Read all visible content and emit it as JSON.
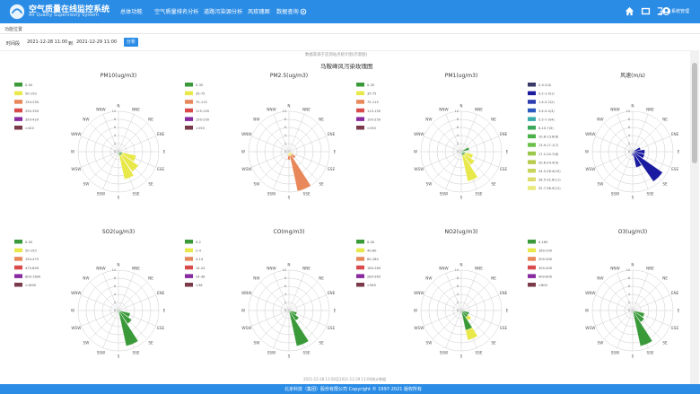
{
  "header": {
    "title": "空气质量在线监控系统",
    "subtitle": "Air Quality Supervisory System",
    "nav": [
      "总体功能",
      "空气质量排名分析",
      "道路污染源分析",
      "风玫瑰图",
      "数据查询"
    ],
    "username": "系统管理"
  },
  "breadcrumb": "功能位置",
  "filter": {
    "time_label": "时间段",
    "start": "2021-12-28 11:00",
    "to_label": "到",
    "end": "2021-12-29 11:00",
    "analyze_label": "分析"
  },
  "chart_note": "数据来源于监测站点统计图(示意图)",
  "chart_main_title": "马鞍峰风污染玫瑰图",
  "bottom_note": "2021-12-28 11:00至2021-12-29 11:00统计数据",
  "footer": "北京科技（集团）股份有限公司 Copyright © 1997-2021 版权所有",
  "colors": {
    "brand": "#2b8ce6"
  },
  "icons": [
    "home-icon",
    "fullscreen-icon",
    "logout-icon",
    "avatar",
    "gear-icon"
  ],
  "chart_data": [
    {
      "type": "polar-bar",
      "title": "PM10(ug/m3)",
      "directions": [
        "N",
        "NNE",
        "NE",
        "ENE",
        "E",
        "ESE",
        "SE",
        "SSE",
        "S",
        "SSW",
        "SW",
        "WSW",
        "W",
        "WNW",
        "NW",
        "NNW"
      ],
      "radial_ticks": [
        "0",
        "2",
        "4",
        "6",
        "8",
        "10"
      ],
      "rmax": 10,
      "legend": [
        {
          "label": "0-50",
          "color": "#3a9a3a"
        },
        {
          "label": "50-150",
          "color": "#e8e84a"
        },
        {
          "label": "150-250",
          "color": "#e8875a"
        },
        {
          "label": "250-350",
          "color": "#d94a4a"
        },
        {
          "label": "350-420",
          "color": "#8a2aa0"
        },
        {
          "label": ">420",
          "color": "#7a3a4a"
        }
      ],
      "series": [
        {
          "dir": "ESE",
          "segments": [
            {
              "c": 0,
              "v": 1
            },
            {
              "c": 1,
              "v": 3.5
            }
          ]
        },
        {
          "dir": "SE",
          "segments": [
            {
              "c": 0,
              "v": 1
            },
            {
              "c": 1,
              "v": 5
            }
          ]
        },
        {
          "dir": "SSE",
          "segments": [
            {
              "c": 0,
              "v": 1
            },
            {
              "c": 1,
              "v": 6
            }
          ]
        }
      ]
    },
    {
      "type": "polar-bar",
      "title": "PM2.5(ug/m3)",
      "directions": [
        "N",
        "NNE",
        "NE",
        "ENE",
        "E",
        "ESE",
        "SE",
        "SSE",
        "S",
        "SSW",
        "SW",
        "WSW",
        "W",
        "WNW",
        "NW",
        "NNW"
      ],
      "radial_ticks": [
        "0",
        "2",
        "4",
        "6",
        "8",
        "10"
      ],
      "rmax": 10,
      "legend": [
        {
          "label": "0-35",
          "color": "#3a9a3a"
        },
        {
          "label": "35-75",
          "color": "#e8e84a"
        },
        {
          "label": "75-115",
          "color": "#e8875a"
        },
        {
          "label": "115-150",
          "color": "#d94a4a"
        },
        {
          "label": "150-250",
          "color": "#8a2aa0"
        },
        {
          "label": ">250",
          "color": "#7a3a4a"
        }
      ],
      "series": [
        {
          "dir": "SE",
          "segments": [
            {
              "c": 1,
              "v": 1
            },
            {
              "c": 2,
              "v": 1
            }
          ]
        },
        {
          "dir": "SSE",
          "segments": [
            {
              "c": 1,
              "v": 1
            },
            {
              "c": 2,
              "v": 9
            }
          ]
        },
        {
          "dir": "S",
          "segments": [
            {
              "c": 1,
              "v": 1
            },
            {
              "c": 2,
              "v": 1
            }
          ]
        }
      ]
    },
    {
      "type": "polar-bar",
      "title": "PM1(ug/m3)",
      "directions": [
        "N",
        "NNE",
        "NE",
        "ENE",
        "E",
        "ESE",
        "SE",
        "SSE",
        "S",
        "SSW",
        "SW",
        "WSW",
        "W",
        "WNW",
        "NW",
        "NNW"
      ],
      "radial_ticks": [
        "0",
        "2",
        "4",
        "6",
        "8",
        "10"
      ],
      "rmax": 10,
      "legend": [
        {
          "label": "0-35",
          "color": "#3a9a3a"
        },
        {
          "label": "35-75",
          "color": "#e8e84a"
        },
        {
          "label": "75-115",
          "color": "#e8875a"
        },
        {
          "label": "115-150",
          "color": "#d94a4a"
        },
        {
          "label": "150-250",
          "color": "#8a2aa0"
        },
        {
          "label": ">250",
          "color": "#7a3a4a"
        }
      ],
      "series": [
        {
          "dir": "ENE",
          "segments": [
            {
              "c": 0,
              "v": 2
            }
          ]
        },
        {
          "dir": "ESE",
          "segments": [
            {
              "c": 0,
              "v": 1
            },
            {
              "c": 1,
              "v": 2
            }
          ]
        },
        {
          "dir": "SE",
          "segments": [
            {
              "c": 0,
              "v": 1
            },
            {
              "c": 1,
              "v": 3
            }
          ]
        },
        {
          "dir": "SSE",
          "segments": [
            {
              "c": 0,
              "v": 1
            },
            {
              "c": 1,
              "v": 6.5
            }
          ]
        }
      ]
    },
    {
      "type": "polar-bar",
      "title": "风速(m/s)",
      "directions": [
        "N",
        "NNE",
        "NE",
        "ENE",
        "E",
        "ESE",
        "SE",
        "SSE",
        "S",
        "SSW",
        "SW",
        "WSW",
        "W",
        "WNW",
        "NW",
        "NNW"
      ],
      "radial_ticks": [
        "0",
        "2",
        "4",
        "6",
        "8",
        "10"
      ],
      "rmax": 10,
      "legend": [
        {
          "label": "0-0.2(0)",
          "color": "#3a3a6a"
        },
        {
          "label": "0.2-1.4(1)",
          "color": "#1a1aa0"
        },
        {
          "label": "1.4-3.2(2)",
          "color": "#2a3ab0"
        },
        {
          "label": "3.4-5.4(3)",
          "color": "#2a5ac0"
        },
        {
          "label": "5.5-7.9(4)",
          "color": "#3aaaaa"
        },
        {
          "label": "8-10.7(5)",
          "color": "#3aaa5a"
        },
        {
          "label": "10.8-13.8(6)",
          "color": "#4ab04a"
        },
        {
          "label": "13.9-17.1(7)",
          "color": "#6ac04a"
        },
        {
          "label": "17.2-20.7(8)",
          "color": "#9ac84a"
        },
        {
          "label": "20.8-24.4(9)",
          "color": "#b8cc4a"
        },
        {
          "label": "24.5-28.4(10)",
          "color": "#c8d45a"
        },
        {
          "label": "28.5-32.6(11)",
          "color": "#dcdc6a"
        },
        {
          "label": "32.7-36.9(12)",
          "color": "#eaea7a"
        }
      ],
      "series": [
        {
          "dir": "ENE",
          "segments": [
            {
              "c": 1,
              "v": 2
            }
          ]
        },
        {
          "dir": "E",
          "segments": [
            {
              "c": 1,
              "v": 3
            }
          ]
        },
        {
          "dir": "ESE",
          "segments": [
            {
              "c": 1,
              "v": 3
            }
          ]
        },
        {
          "dir": "SE",
          "segments": [
            {
              "c": 1,
              "v": 9
            }
          ]
        },
        {
          "dir": "SSE",
          "segments": [
            {
              "c": 1,
              "v": 4
            }
          ]
        },
        {
          "dir": "S",
          "segments": [
            {
              "c": 1,
              "v": 1
            }
          ]
        }
      ]
    },
    {
      "type": "polar-bar",
      "title": "SO2(ug/m3)",
      "directions": [
        "N",
        "NNE",
        "NE",
        "ENE",
        "E",
        "ESE",
        "SE",
        "SSE",
        "S",
        "SSW",
        "SW",
        "WSW",
        "W",
        "WNW",
        "NW",
        "NNW"
      ],
      "radial_ticks": [
        "0",
        "2",
        "4",
        "6",
        "8",
        "10"
      ],
      "rmax": 10,
      "legend": [
        {
          "label": "0-50",
          "color": "#3a9a3a"
        },
        {
          "label": "50-150",
          "color": "#e8e84a"
        },
        {
          "label": "150-475",
          "color": "#e8875a"
        },
        {
          "label": "475-800",
          "color": "#d94a4a"
        },
        {
          "label": "800-1600",
          "color": "#8a2aa0"
        },
        {
          "label": ">1600",
          "color": "#7a3a4a"
        }
      ],
      "series": [
        {
          "dir": "ESE",
          "segments": [
            {
              "c": 0,
              "v": 3
            }
          ]
        },
        {
          "dir": "SE",
          "segments": [
            {
              "c": 0,
              "v": 4
            }
          ]
        },
        {
          "dir": "SSE",
          "segments": [
            {
              "c": 0,
              "v": 9
            }
          ]
        }
      ]
    },
    {
      "type": "polar-bar",
      "title": "CO(mg/m3)",
      "directions": [
        "N",
        "NNE",
        "NE",
        "ENE",
        "E",
        "ESE",
        "SE",
        "SSE",
        "S",
        "SSW",
        "SW",
        "WSW",
        "W",
        "WNW",
        "NW",
        "NNW"
      ],
      "radial_ticks": [
        "0",
        "2",
        "4",
        "6",
        "8",
        "10"
      ],
      "rmax": 10,
      "legend": [
        {
          "label": "0-2",
          "color": "#3a9a3a"
        },
        {
          "label": "2-4",
          "color": "#e8e84a"
        },
        {
          "label": "4-14",
          "color": "#e8875a"
        },
        {
          "label": "14-24",
          "color": "#d94a4a"
        },
        {
          "label": "24-36",
          "color": "#8a2aa0"
        },
        {
          "label": ">36",
          "color": "#7a3a4a"
        }
      ],
      "series": [
        {
          "dir": "ESE",
          "segments": [
            {
              "c": 0,
              "v": 2
            }
          ]
        },
        {
          "dir": "SE",
          "segments": [
            {
              "c": 0,
              "v": 3
            }
          ]
        },
        {
          "dir": "SSE",
          "segments": [
            {
              "c": 0,
              "v": 9
            }
          ]
        }
      ]
    },
    {
      "type": "polar-bar",
      "title": "NO2(ug/m3)",
      "directions": [
        "N",
        "NNE",
        "NE",
        "ENE",
        "E",
        "ESE",
        "SE",
        "SSE",
        "S",
        "SSW",
        "SW",
        "WSW",
        "W",
        "WNW",
        "NW",
        "NNW"
      ],
      "radial_ticks": [
        "0",
        "2",
        "4",
        "6",
        "8",
        "10"
      ],
      "rmax": 10,
      "legend": [
        {
          "label": "0-40",
          "color": "#3a9a3a"
        },
        {
          "label": "40-80",
          "color": "#e8e84a"
        },
        {
          "label": "80-180",
          "color": "#e8875a"
        },
        {
          "label": "180-280",
          "color": "#d94a4a"
        },
        {
          "label": "280-565",
          "color": "#8a2aa0"
        },
        {
          "label": ">565",
          "color": "#7a3a4a"
        }
      ],
      "series": [
        {
          "dir": "ESE",
          "segments": [
            {
              "c": 0,
              "v": 2
            }
          ]
        },
        {
          "dir": "SE",
          "segments": [
            {
              "c": 0,
              "v": 2
            },
            {
              "c": 1,
              "v": 1
            }
          ]
        },
        {
          "dir": "SSE",
          "segments": [
            {
              "c": 0,
              "v": 5
            },
            {
              "c": 1,
              "v": 2.5
            }
          ]
        }
      ]
    },
    {
      "type": "polar-bar",
      "title": "O3(ug/m3)",
      "directions": [
        "N",
        "NNE",
        "NE",
        "ENE",
        "E",
        "ESE",
        "SE",
        "SSE",
        "S",
        "SSW",
        "SW",
        "WSW",
        "W",
        "WNW",
        "NW",
        "NNW"
      ],
      "radial_ticks": [
        "0",
        "2",
        "4",
        "6",
        "8",
        "10"
      ],
      "rmax": 10,
      "legend": [
        {
          "label": "0-160",
          "color": "#3a9a3a"
        },
        {
          "label": "160-200",
          "color": "#e8e84a"
        },
        {
          "label": "200-300",
          "color": "#e8875a"
        },
        {
          "label": "300-400",
          "color": "#d94a4a"
        },
        {
          "label": "400-800",
          "color": "#8a2aa0"
        },
        {
          "label": ">800",
          "color": "#7a3a4a"
        }
      ],
      "series": [
        {
          "dir": "ESE",
          "segments": [
            {
              "c": 0,
              "v": 3
            }
          ]
        },
        {
          "dir": "SE",
          "segments": [
            {
              "c": 0,
              "v": 3.5
            }
          ]
        },
        {
          "dir": "SSE",
          "segments": [
            {
              "c": 0,
              "v": 9
            }
          ]
        }
      ]
    }
  ]
}
